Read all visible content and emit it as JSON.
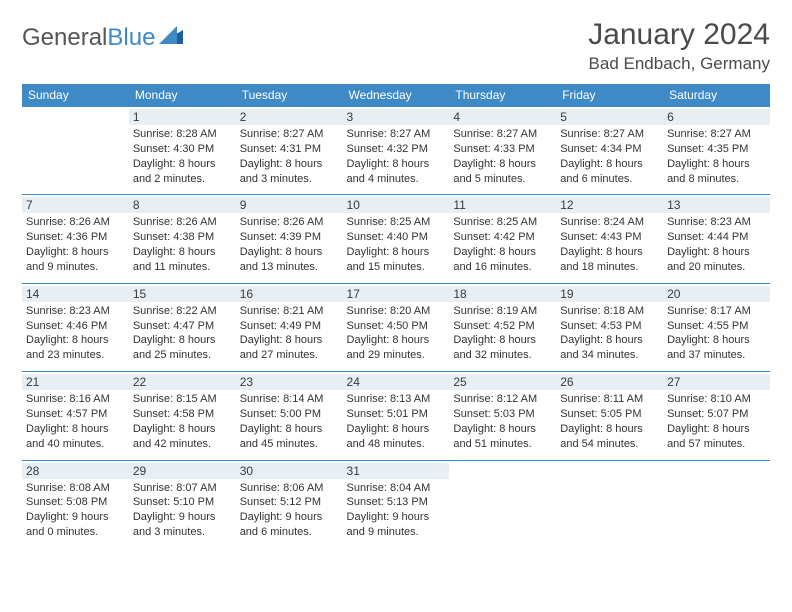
{
  "brand": {
    "name_a": "General",
    "name_b": "Blue"
  },
  "title": "January 2024",
  "location": "Bad Endbach, Germany",
  "colors": {
    "accent": "#3d8ac7",
    "daynum_bg": "#e7eff5",
    "text": "#333333",
    "header_text": "#4a4a4a"
  },
  "days_of_week": [
    "Sunday",
    "Monday",
    "Tuesday",
    "Wednesday",
    "Thursday",
    "Friday",
    "Saturday"
  ],
  "weeks": [
    [
      null,
      {
        "n": "1",
        "sr": "Sunrise: 8:28 AM",
        "ss": "Sunset: 4:30 PM",
        "dl": "Daylight: 8 hours and 2 minutes."
      },
      {
        "n": "2",
        "sr": "Sunrise: 8:27 AM",
        "ss": "Sunset: 4:31 PM",
        "dl": "Daylight: 8 hours and 3 minutes."
      },
      {
        "n": "3",
        "sr": "Sunrise: 8:27 AM",
        "ss": "Sunset: 4:32 PM",
        "dl": "Daylight: 8 hours and 4 minutes."
      },
      {
        "n": "4",
        "sr": "Sunrise: 8:27 AM",
        "ss": "Sunset: 4:33 PM",
        "dl": "Daylight: 8 hours and 5 minutes."
      },
      {
        "n": "5",
        "sr": "Sunrise: 8:27 AM",
        "ss": "Sunset: 4:34 PM",
        "dl": "Daylight: 8 hours and 6 minutes."
      },
      {
        "n": "6",
        "sr": "Sunrise: 8:27 AM",
        "ss": "Sunset: 4:35 PM",
        "dl": "Daylight: 8 hours and 8 minutes."
      }
    ],
    [
      {
        "n": "7",
        "sr": "Sunrise: 8:26 AM",
        "ss": "Sunset: 4:36 PM",
        "dl": "Daylight: 8 hours and 9 minutes."
      },
      {
        "n": "8",
        "sr": "Sunrise: 8:26 AM",
        "ss": "Sunset: 4:38 PM",
        "dl": "Daylight: 8 hours and 11 minutes."
      },
      {
        "n": "9",
        "sr": "Sunrise: 8:26 AM",
        "ss": "Sunset: 4:39 PM",
        "dl": "Daylight: 8 hours and 13 minutes."
      },
      {
        "n": "10",
        "sr": "Sunrise: 8:25 AM",
        "ss": "Sunset: 4:40 PM",
        "dl": "Daylight: 8 hours and 15 minutes."
      },
      {
        "n": "11",
        "sr": "Sunrise: 8:25 AM",
        "ss": "Sunset: 4:42 PM",
        "dl": "Daylight: 8 hours and 16 minutes."
      },
      {
        "n": "12",
        "sr": "Sunrise: 8:24 AM",
        "ss": "Sunset: 4:43 PM",
        "dl": "Daylight: 8 hours and 18 minutes."
      },
      {
        "n": "13",
        "sr": "Sunrise: 8:23 AM",
        "ss": "Sunset: 4:44 PM",
        "dl": "Daylight: 8 hours and 20 minutes."
      }
    ],
    [
      {
        "n": "14",
        "sr": "Sunrise: 8:23 AM",
        "ss": "Sunset: 4:46 PM",
        "dl": "Daylight: 8 hours and 23 minutes."
      },
      {
        "n": "15",
        "sr": "Sunrise: 8:22 AM",
        "ss": "Sunset: 4:47 PM",
        "dl": "Daylight: 8 hours and 25 minutes."
      },
      {
        "n": "16",
        "sr": "Sunrise: 8:21 AM",
        "ss": "Sunset: 4:49 PM",
        "dl": "Daylight: 8 hours and 27 minutes."
      },
      {
        "n": "17",
        "sr": "Sunrise: 8:20 AM",
        "ss": "Sunset: 4:50 PM",
        "dl": "Daylight: 8 hours and 29 minutes."
      },
      {
        "n": "18",
        "sr": "Sunrise: 8:19 AM",
        "ss": "Sunset: 4:52 PM",
        "dl": "Daylight: 8 hours and 32 minutes."
      },
      {
        "n": "19",
        "sr": "Sunrise: 8:18 AM",
        "ss": "Sunset: 4:53 PM",
        "dl": "Daylight: 8 hours and 34 minutes."
      },
      {
        "n": "20",
        "sr": "Sunrise: 8:17 AM",
        "ss": "Sunset: 4:55 PM",
        "dl": "Daylight: 8 hours and 37 minutes."
      }
    ],
    [
      {
        "n": "21",
        "sr": "Sunrise: 8:16 AM",
        "ss": "Sunset: 4:57 PM",
        "dl": "Daylight: 8 hours and 40 minutes."
      },
      {
        "n": "22",
        "sr": "Sunrise: 8:15 AM",
        "ss": "Sunset: 4:58 PM",
        "dl": "Daylight: 8 hours and 42 minutes."
      },
      {
        "n": "23",
        "sr": "Sunrise: 8:14 AM",
        "ss": "Sunset: 5:00 PM",
        "dl": "Daylight: 8 hours and 45 minutes."
      },
      {
        "n": "24",
        "sr": "Sunrise: 8:13 AM",
        "ss": "Sunset: 5:01 PM",
        "dl": "Daylight: 8 hours and 48 minutes."
      },
      {
        "n": "25",
        "sr": "Sunrise: 8:12 AM",
        "ss": "Sunset: 5:03 PM",
        "dl": "Daylight: 8 hours and 51 minutes."
      },
      {
        "n": "26",
        "sr": "Sunrise: 8:11 AM",
        "ss": "Sunset: 5:05 PM",
        "dl": "Daylight: 8 hours and 54 minutes."
      },
      {
        "n": "27",
        "sr": "Sunrise: 8:10 AM",
        "ss": "Sunset: 5:07 PM",
        "dl": "Daylight: 8 hours and 57 minutes."
      }
    ],
    [
      {
        "n": "28",
        "sr": "Sunrise: 8:08 AM",
        "ss": "Sunset: 5:08 PM",
        "dl": "Daylight: 9 hours and 0 minutes."
      },
      {
        "n": "29",
        "sr": "Sunrise: 8:07 AM",
        "ss": "Sunset: 5:10 PM",
        "dl": "Daylight: 9 hours and 3 minutes."
      },
      {
        "n": "30",
        "sr": "Sunrise: 8:06 AM",
        "ss": "Sunset: 5:12 PM",
        "dl": "Daylight: 9 hours and 6 minutes."
      },
      {
        "n": "31",
        "sr": "Sunrise: 8:04 AM",
        "ss": "Sunset: 5:13 PM",
        "dl": "Daylight: 9 hours and 9 minutes."
      },
      null,
      null,
      null
    ]
  ]
}
